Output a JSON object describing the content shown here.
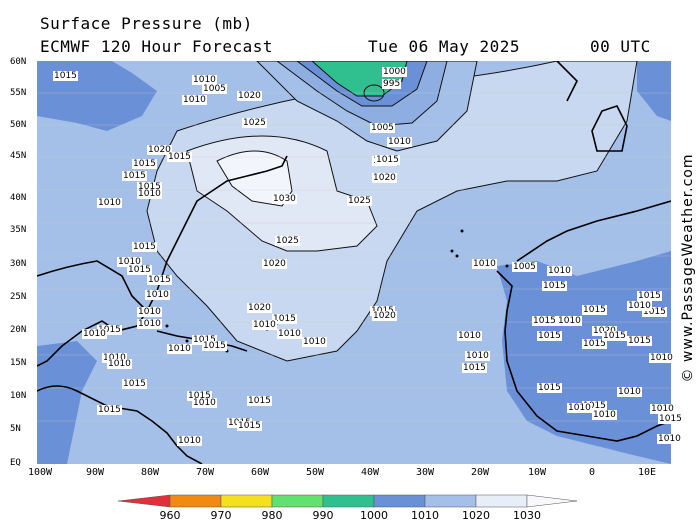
{
  "header": {
    "title": "Surface Pressure (mb)",
    "model": "ECMWF 120 Hour Forecast",
    "date": "Tue 06 May 2025",
    "time": "00 UTC"
  },
  "credit": "© www.PassageWeather.com",
  "lat_labels": [
    "60N",
    "55N",
    "50N",
    "45N",
    "40N",
    "35N",
    "30N",
    "25N",
    "20N",
    "15N",
    "10N",
    "5N",
    "EQ"
  ],
  "lon_labels": [
    "100W",
    "90W",
    "80W",
    "70W",
    "60W",
    "50W",
    "40W",
    "30W",
    "20W",
    "10W",
    "0",
    "10E"
  ],
  "colorbar": {
    "labels": [
      "960",
      "970",
      "980",
      "990",
      "1000",
      "1010",
      "1020",
      "1030"
    ],
    "colors": [
      "#e0303a",
      "#f08a10",
      "#f5e020",
      "#62e070",
      "#30c090",
      "#6a90d8",
      "#a4c0e8",
      "#e8eef8"
    ]
  },
  "pressure_labels": {
    "high_center": [
      "1030",
      "1025",
      "1025",
      "1020",
      "1020",
      "1015",
      "1015",
      "1020"
    ],
    "low_center": [
      "1000",
      "995",
      "1005",
      "1010",
      "1015"
    ],
    "scattered": [
      "1015",
      "1010",
      "1005",
      "1010",
      "1020",
      "1025",
      "1020",
      "1015",
      "1015",
      "1015",
      "1015",
      "1010",
      "1010",
      "1015",
      "1010",
      "1015",
      "1015",
      "1010",
      "1010",
      "1010",
      "1015",
      "1010",
      "1020",
      "1015",
      "1010",
      "1010",
      "1010",
      "1015",
      "1015",
      "1010",
      "1010",
      "1010",
      "1015",
      "1015",
      "1015",
      "1010",
      "1015",
      "1015",
      "1015",
      "1010",
      "1010",
      "1005",
      "1010",
      "1015",
      "1020",
      "1015",
      "1015",
      "1015",
      "1010",
      "1010",
      "1010",
      "1015",
      "1015",
      "1015",
      "1015",
      "1015",
      "1010",
      "1010",
      "1010",
      "1010",
      "1015",
      "1010",
      "1015",
      "1010",
      "1015",
      "1015",
      "1010"
    ]
  }
}
